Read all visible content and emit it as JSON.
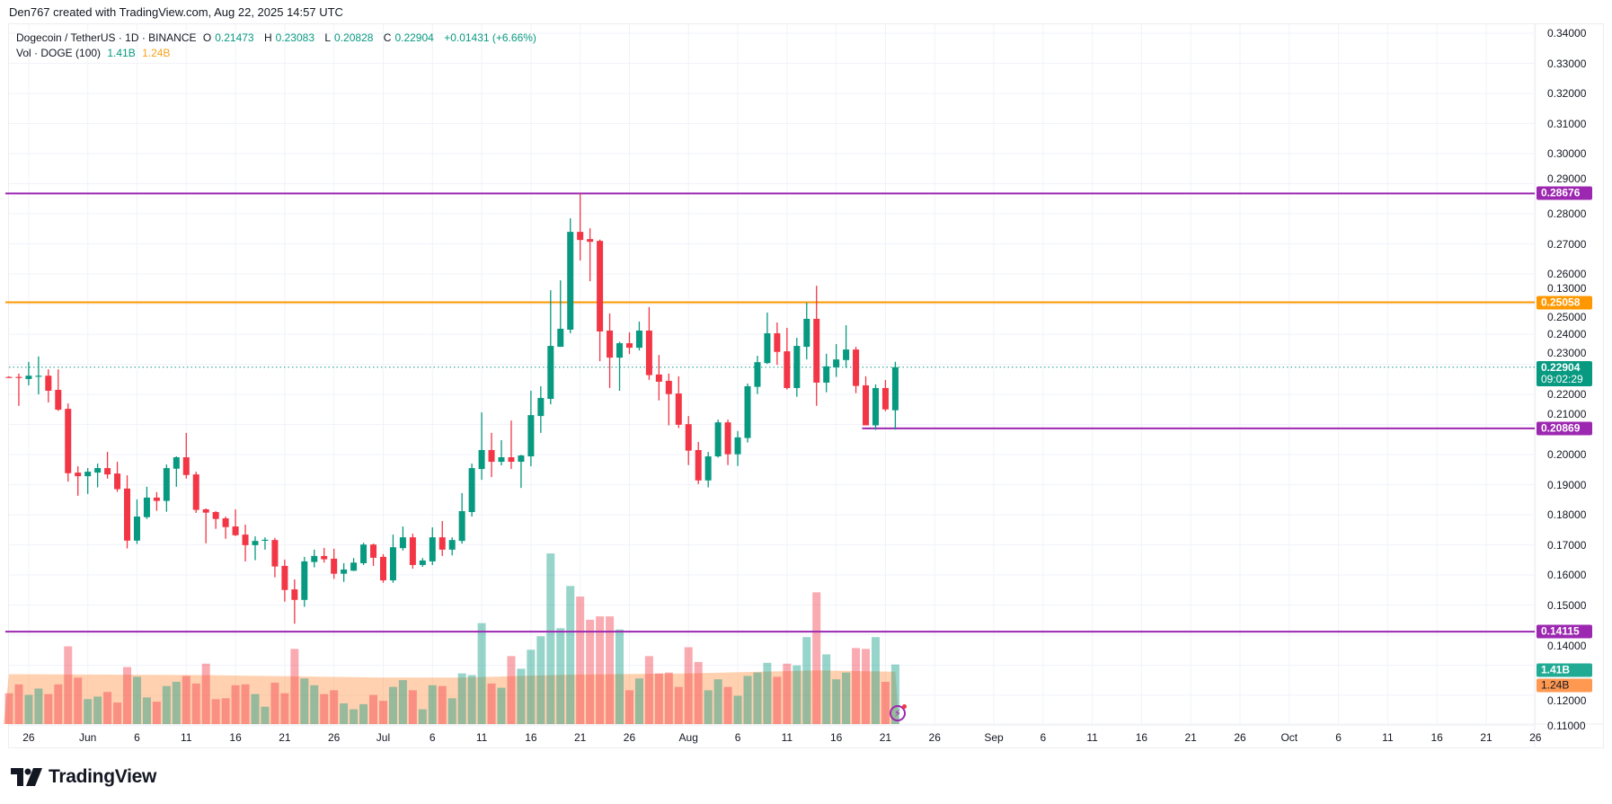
{
  "credit": "Den767 created with TradingView.com, Aug 22, 2025 14:57 UTC",
  "legend": {
    "symbol": "Dogecoin / TetherUS · 1D · BINANCE",
    "o_label": "O",
    "o": "0.21473",
    "h_label": "H",
    "h": "0.23083",
    "l_label": "L",
    "l": "0.20828",
    "c_label": "C",
    "c": "0.22904",
    "change": "+0.01431 (+6.66%)",
    "vol_label": "Vol · DOGE (100)",
    "vol": "1.41B",
    "vol_ma": "1.24B"
  },
  "colors": {
    "up": "#089981",
    "down": "#F23645",
    "purple": "#9C27B0",
    "orange": "#FF9800",
    "vol_ma": "#FF9850"
  },
  "price_tags": [
    {
      "value": 0.28676,
      "text": "0.28676",
      "color": "#9C27B0",
      "from_index": 0
    },
    {
      "value": 0.25058,
      "text": "0.25058",
      "color": "#FF9800",
      "from_index": 0
    },
    {
      "value": 0.20869,
      "text": "0.20869",
      "color": "#9C27B0",
      "from_index": 87
    },
    {
      "value": 0.14115,
      "text": "0.14115",
      "color": "#9C27B0",
      "from_index": 0
    }
  ],
  "last_price": {
    "value": 0.22904,
    "text": "0.22904",
    "countdown": "09:02:29",
    "color": "#089981"
  },
  "vol_tags": {
    "vol": "1.41B",
    "vol_color": "#22AB94",
    "ma": "1.24B",
    "ma_color": "#FF9850"
  },
  "logo_text": "TradingView",
  "chart_data": {
    "type": "candlestick",
    "title": "Dogecoin / TetherUS · 1D · BINANCE",
    "ylim": [
      0.11,
      0.34
    ],
    "y_ticks": [
      "0.34000",
      "0.33000",
      "0.32000",
      "0.31000",
      "0.30000",
      "0.29000",
      "0.28000",
      "0.27000",
      "0.26000",
      "0.25000",
      "0.24000",
      "0.23000",
      "0.22000",
      "0.21000",
      "0.20000",
      "0.19000",
      "0.18000",
      "0.17000",
      "0.16000",
      "0.15000",
      "0.14000",
      "0.13000",
      "0.12000",
      "0.11000"
    ],
    "x_ticks": [
      {
        "day": 2,
        "label": "26"
      },
      {
        "day": 8,
        "label": "Jun"
      },
      {
        "day": 13,
        "label": "6"
      },
      {
        "day": 18,
        "label": "11"
      },
      {
        "day": 23,
        "label": "16"
      },
      {
        "day": 28,
        "label": "21"
      },
      {
        "day": 33,
        "label": "26"
      },
      {
        "day": 38,
        "label": "Jul"
      },
      {
        "day": 43,
        "label": "6"
      },
      {
        "day": 48,
        "label": "11"
      },
      {
        "day": 53,
        "label": "16"
      },
      {
        "day": 58,
        "label": "21"
      },
      {
        "day": 63,
        "label": "26"
      },
      {
        "day": 69,
        "label": "Aug"
      },
      {
        "day": 74,
        "label": "6"
      },
      {
        "day": 79,
        "label": "11"
      },
      {
        "day": 84,
        "label": "16"
      },
      {
        "day": 89,
        "label": "21"
      },
      {
        "day": 94,
        "label": "26"
      },
      {
        "day": 100,
        "label": "Sep"
      },
      {
        "day": 105,
        "label": "6"
      },
      {
        "day": 110,
        "label": "11"
      },
      {
        "day": 115,
        "label": "16"
      },
      {
        "day": 120,
        "label": "21"
      },
      {
        "day": 125,
        "label": "26"
      },
      {
        "day": 130,
        "label": "Oct"
      },
      {
        "day": 135,
        "label": "6"
      },
      {
        "day": 140,
        "label": "11"
      },
      {
        "day": 145,
        "label": "16"
      },
      {
        "day": 150,
        "label": "21"
      },
      {
        "day": 155,
        "label": "26"
      }
    ],
    "columns": [
      "date",
      "open",
      "high",
      "low",
      "close",
      "volume_B"
    ],
    "candles": [
      [
        "May 24",
        0.2258,
        0.226,
        0.2255,
        0.2256,
        0.73
      ],
      [
        "May 25",
        0.2258,
        0.2269,
        0.2162,
        0.2256,
        0.94
      ],
      [
        "May 26",
        0.2251,
        0.2308,
        0.223,
        0.2262,
        0.69
      ],
      [
        "May 27",
        0.2261,
        0.2326,
        0.22,
        0.2262,
        0.84
      ],
      [
        "May 28",
        0.2262,
        0.2283,
        0.2173,
        0.2212,
        0.71
      ],
      [
        "May 29",
        0.2215,
        0.2283,
        0.2145,
        0.2149,
        0.94
      ],
      [
        "May 30",
        0.2152,
        0.217,
        0.191,
        0.1938,
        1.84
      ],
      [
        "May 31",
        0.194,
        0.1961,
        0.1863,
        0.1928,
        1.1
      ],
      [
        "Jun 1",
        0.1928,
        0.1955,
        0.1869,
        0.1943,
        0.59
      ],
      [
        "Jun 2",
        0.194,
        0.197,
        0.1891,
        0.1955,
        0.65
      ],
      [
        "Jun 3",
        0.1955,
        0.2009,
        0.192,
        0.1934,
        0.76
      ],
      [
        "Jun 4",
        0.1937,
        0.1976,
        0.1876,
        0.1885,
        0.51
      ],
      [
        "Jun 5",
        0.1887,
        0.1931,
        0.1688,
        0.1714,
        1.35
      ],
      [
        "Jun 6",
        0.1714,
        0.1851,
        0.1703,
        0.1794,
        1.12
      ],
      [
        "Jun 7",
        0.1792,
        0.1893,
        0.1786,
        0.1857,
        0.63
      ],
      [
        "Jun 8",
        0.1857,
        0.1875,
        0.1813,
        0.1846,
        0.53
      ],
      [
        "Jun 9",
        0.1846,
        0.1967,
        0.181,
        0.1955,
        0.9
      ],
      [
        "Jun 10",
        0.1953,
        0.1994,
        0.1893,
        0.1991,
        1.0
      ],
      [
        "Jun 11",
        0.1991,
        0.2072,
        0.192,
        0.1932,
        1.14
      ],
      [
        "Jun 12",
        0.1934,
        0.1943,
        0.1806,
        0.1816,
        0.96
      ],
      [
        "Jun 13",
        0.1818,
        0.1821,
        0.1705,
        0.1807,
        1.43
      ],
      [
        "Jun 14",
        0.1809,
        0.1812,
        0.1753,
        0.1786,
        0.59
      ],
      [
        "Jun 15",
        0.1788,
        0.1794,
        0.172,
        0.1759,
        0.61
      ],
      [
        "Jun 16",
        0.1761,
        0.1818,
        0.1729,
        0.1732,
        0.92
      ],
      [
        "Jun 17",
        0.1734,
        0.1767,
        0.1645,
        0.1699,
        0.94
      ],
      [
        "Jun 18",
        0.1699,
        0.1728,
        0.1649,
        0.1713,
        0.71
      ],
      [
        "Jun 19",
        0.1716,
        0.1725,
        0.1684,
        0.1717,
        0.41
      ],
      [
        "Jun 20",
        0.1716,
        0.1723,
        0.1592,
        0.1628,
        0.98
      ],
      [
        "Jun 21",
        0.163,
        0.1651,
        0.1511,
        0.155,
        0.73
      ],
      [
        "Jun 22",
        0.1552,
        0.1585,
        0.1438,
        0.1517,
        1.78
      ],
      [
        "Jun 23",
        0.1517,
        0.166,
        0.1494,
        0.1645,
        1.08
      ],
      [
        "Jun 24",
        0.1643,
        0.1684,
        0.1625,
        0.1663,
        0.92
      ],
      [
        "Jun 25",
        0.1663,
        0.169,
        0.1641,
        0.1652,
        0.71
      ],
      [
        "Jun 26",
        0.1654,
        0.1687,
        0.1587,
        0.1604,
        0.8
      ],
      [
        "Jun 27",
        0.1604,
        0.1639,
        0.1577,
        0.1618,
        0.49
      ],
      [
        "Jun 28",
        0.1614,
        0.1656,
        0.1613,
        0.1641,
        0.35
      ],
      [
        "Jun 29",
        0.1639,
        0.1707,
        0.1633,
        0.1701,
        0.47
      ],
      [
        "Jun 30",
        0.1701,
        0.1704,
        0.163,
        0.1657,
        0.69
      ],
      [
        "Jul 1",
        0.166,
        0.1669,
        0.1574,
        0.1582,
        0.55
      ],
      [
        "Jul 2",
        0.1582,
        0.1734,
        0.1574,
        0.1692,
        0.88
      ],
      [
        "Jul 3",
        0.1689,
        0.1761,
        0.1681,
        0.1725,
        1.04
      ],
      [
        "Jul 4",
        0.1725,
        0.1737,
        0.1621,
        0.1633,
        0.8
      ],
      [
        "Jul 5",
        0.1633,
        0.1656,
        0.1627,
        0.1648,
        0.35
      ],
      [
        "Jul 6",
        0.1645,
        0.1758,
        0.1633,
        0.1725,
        0.92
      ],
      [
        "Jul 7",
        0.1725,
        0.1779,
        0.1663,
        0.1684,
        0.9
      ],
      [
        "Jul 8",
        0.1684,
        0.1725,
        0.1665,
        0.1716,
        0.61
      ],
      [
        "Jul 9",
        0.1713,
        0.1872,
        0.1704,
        0.1812,
        1.2
      ],
      [
        "Jul 10",
        0.1809,
        0.197,
        0.1794,
        0.1955,
        1.16
      ],
      [
        "Jul 11",
        0.1952,
        0.214,
        0.1916,
        0.2015,
        2.39
      ],
      [
        "Jul 12",
        0.2015,
        0.2072,
        0.1925,
        0.1976,
        0.96
      ],
      [
        "Jul 13",
        0.1976,
        0.2048,
        0.1964,
        0.1991,
        0.86
      ],
      [
        "Jul 14",
        0.1991,
        0.2113,
        0.1952,
        0.1976,
        1.61
      ],
      [
        "Jul 15",
        0.1976,
        0.1999,
        0.1889,
        0.1997,
        1.31
      ],
      [
        "Jul 16",
        0.1994,
        0.2212,
        0.1961,
        0.2131,
        1.76
      ],
      [
        "Jul 17",
        0.2128,
        0.2227,
        0.2072,
        0.2188,
        2.08
      ],
      [
        "Jul 18",
        0.2185,
        0.2546,
        0.2167,
        0.2361,
        4.04
      ],
      [
        "Jul 19",
        0.2358,
        0.2579,
        0.2358,
        0.2418,
        2.27
      ],
      [
        "Jul 20",
        0.2415,
        0.2785,
        0.2403,
        0.274,
        3.27
      ],
      [
        "Jul 21",
        0.274,
        0.2868,
        0.2645,
        0.2713,
        3.02
      ],
      [
        "Jul 22",
        0.2716,
        0.2752,
        0.2576,
        0.2707,
        2.47
      ],
      [
        "Jul 23",
        0.271,
        0.2714,
        0.231,
        0.2409,
        2.55
      ],
      [
        "Jul 24",
        0.2412,
        0.2469,
        0.2221,
        0.2322,
        2.55
      ],
      [
        "Jul 25",
        0.2322,
        0.2375,
        0.2212,
        0.237,
        2.24
      ],
      [
        "Jul 26",
        0.237,
        0.2406,
        0.2334,
        0.2355,
        0.8
      ],
      [
        "Jul 27",
        0.2355,
        0.2442,
        0.2346,
        0.2412,
        1.08
      ],
      [
        "Jul 28",
        0.2412,
        0.249,
        0.2248,
        0.2264,
        1.61
      ],
      [
        "Jul 29",
        0.2266,
        0.2331,
        0.218,
        0.2242,
        1.2
      ],
      [
        "Jul 30",
        0.2245,
        0.2269,
        0.2097,
        0.2201,
        1.22
      ],
      [
        "Jul 31",
        0.2203,
        0.226,
        0.2088,
        0.2099,
        0.88
      ],
      [
        "Aug 1",
        0.2101,
        0.2128,
        0.1965,
        0.2013,
        1.82
      ],
      [
        "Aug 2",
        0.2015,
        0.2042,
        0.1902,
        0.1914,
        1.47
      ],
      [
        "Aug 3",
        0.1914,
        0.2009,
        0.1891,
        0.1994,
        0.8
      ],
      [
        "Aug 4",
        0.1994,
        0.2116,
        0.199,
        0.2107,
        1.06
      ],
      [
        "Aug 5",
        0.2107,
        0.2116,
        0.1965,
        0.2001,
        0.88
      ],
      [
        "Aug 6",
        0.2001,
        0.2078,
        0.1962,
        0.2057,
        0.67
      ],
      [
        "Aug 7",
        0.2055,
        0.2236,
        0.204,
        0.2227,
        1.14
      ],
      [
        "Aug 8",
        0.2225,
        0.2328,
        0.2201,
        0.2307,
        1.22
      ],
      [
        "Aug 9",
        0.2304,
        0.2472,
        0.2301,
        0.2403,
        1.45
      ],
      [
        "Aug 10",
        0.2403,
        0.2439,
        0.2298,
        0.2341,
        1.12
      ],
      [
        "Aug 11",
        0.2343,
        0.2421,
        0.2216,
        0.2221,
        1.43
      ],
      [
        "Aug 12",
        0.2221,
        0.2388,
        0.2192,
        0.2361,
        1.39
      ],
      [
        "Aug 13",
        0.2358,
        0.2505,
        0.2316,
        0.2451,
        2.06
      ],
      [
        "Aug 14",
        0.2451,
        0.2561,
        0.2162,
        0.2239,
        3.12
      ],
      [
        "Aug 15",
        0.2239,
        0.2335,
        0.2207,
        0.2293,
        1.65
      ],
      [
        "Aug 16",
        0.229,
        0.2367,
        0.2258,
        0.2316,
        1.06
      ],
      [
        "Aug 17",
        0.2314,
        0.243,
        0.2288,
        0.2349,
        1.22
      ],
      [
        "Aug 18",
        0.2349,
        0.2358,
        0.2204,
        0.2228,
        1.8
      ],
      [
        "Aug 19",
        0.223,
        0.226,
        0.2097,
        0.2097,
        1.78
      ],
      [
        "Aug 20",
        0.2097,
        0.2233,
        0.2082,
        0.2221,
        2.06
      ],
      [
        "Aug 21",
        0.2221,
        0.2248,
        0.2144,
        0.215,
        1.0
      ],
      [
        "Aug 22",
        0.21473,
        0.23083,
        0.20828,
        0.22904,
        1.41
      ]
    ],
    "volume_ma": [
      [
        0,
        1.18
      ],
      [
        20,
        1.16
      ],
      [
        38,
        1.1
      ],
      [
        46,
        1.1
      ],
      [
        57,
        1.17
      ],
      [
        69,
        1.2
      ],
      [
        82,
        1.27
      ],
      [
        90,
        1.24
      ]
    ]
  }
}
